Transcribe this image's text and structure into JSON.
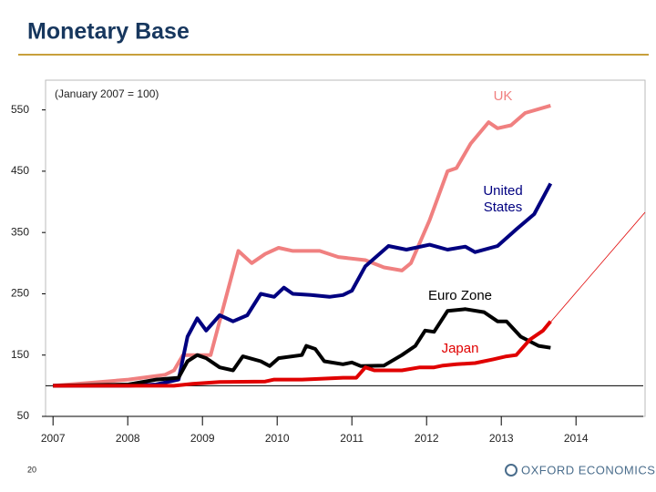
{
  "title": "Monetary Base",
  "page_number": "20",
  "logo": "OXFORD ECONOMICS",
  "chart_data": {
    "type": "line",
    "subtitle": "(January 2007 = 100)",
    "xlim": [
      2006.9,
      2014.9
    ],
    "xticks": [
      2007,
      2008,
      2009,
      2010,
      2011,
      2012,
      2013,
      2014
    ],
    "ylim": [
      50,
      600
    ],
    "yticks": [
      50,
      150,
      250,
      350,
      450,
      550
    ],
    "reference_line": 100,
    "series": [
      {
        "name": "UK",
        "color": "#f08080",
        "x": [
          2007.0,
          2007.52,
          2008.01,
          2008.5,
          2008.62,
          2008.74,
          2009.11,
          2009.48,
          2009.66,
          2009.84,
          2010.02,
          2010.21,
          2010.57,
          2010.82,
          2011.18,
          2011.43,
          2011.67,
          2011.79,
          2012.04,
          2012.28,
          2012.4,
          2012.59,
          2012.83,
          2012.95,
          2013.13,
          2013.32,
          2013.66
        ],
        "values": [
          100,
          105,
          110,
          118,
          125,
          150,
          150,
          320,
          300,
          315,
          325,
          320,
          320,
          310,
          305,
          293,
          288,
          300,
          370,
          450,
          455,
          495,
          530,
          520,
          525,
          545,
          557
        ]
      },
      {
        "name": "United States",
        "color": "#000080",
        "x": [
          2007.0,
          2008.01,
          2008.38,
          2008.68,
          2008.8,
          2008.93,
          2009.05,
          2009.23,
          2009.41,
          2009.6,
          2009.78,
          2009.96,
          2010.09,
          2010.21,
          2010.45,
          2010.7,
          2010.88,
          2011.0,
          2011.18,
          2011.49,
          2011.73,
          2012.04,
          2012.28,
          2012.52,
          2012.65,
          2012.95,
          2013.2,
          2013.44,
          2013.66
        ],
        "values": [
          100,
          100,
          102,
          110,
          180,
          210,
          190,
          215,
          205,
          215,
          250,
          245,
          260,
          250,
          248,
          245,
          248,
          255,
          295,
          328,
          322,
          330,
          322,
          327,
          318,
          328,
          355,
          380,
          430
        ]
      },
      {
        "name": "Euro Zone",
        "color": "#000000",
        "x": [
          2007.0,
          2008.01,
          2008.38,
          2008.68,
          2008.8,
          2008.93,
          2009.05,
          2009.23,
          2009.41,
          2009.54,
          2009.78,
          2009.9,
          2010.02,
          2010.33,
          2010.39,
          2010.51,
          2010.63,
          2010.88,
          2011.0,
          2011.12,
          2011.43,
          2011.67,
          2011.85,
          2011.98,
          2012.1,
          2012.28,
          2012.52,
          2012.77,
          2012.95,
          2013.07,
          2013.26,
          2013.5,
          2013.66
        ],
        "values": [
          100,
          102,
          110,
          113,
          140,
          150,
          145,
          130,
          125,
          148,
          140,
          132,
          145,
          150,
          165,
          160,
          140,
          135,
          138,
          132,
          133,
          150,
          165,
          190,
          188,
          222,
          225,
          220,
          205,
          205,
          180,
          165,
          162
        ]
      },
      {
        "name": "Japan",
        "color": "#e00000",
        "x": [
          2007.0,
          2008.62,
          2008.87,
          2009.23,
          2009.84,
          2009.96,
          2010.33,
          2010.51,
          2010.88,
          2011.06,
          2011.18,
          2011.3,
          2011.67,
          2011.91,
          2012.1,
          2012.22,
          2012.4,
          2012.65,
          2012.89,
          2013.07,
          2013.2,
          2013.38,
          2013.56,
          2013.66
        ],
        "values": [
          100,
          100,
          103,
          106,
          107,
          110,
          110,
          111,
          113,
          113,
          130,
          125,
          125,
          130,
          130,
          133,
          135,
          137,
          143,
          148,
          150,
          175,
          190,
          205
        ]
      }
    ]
  }
}
